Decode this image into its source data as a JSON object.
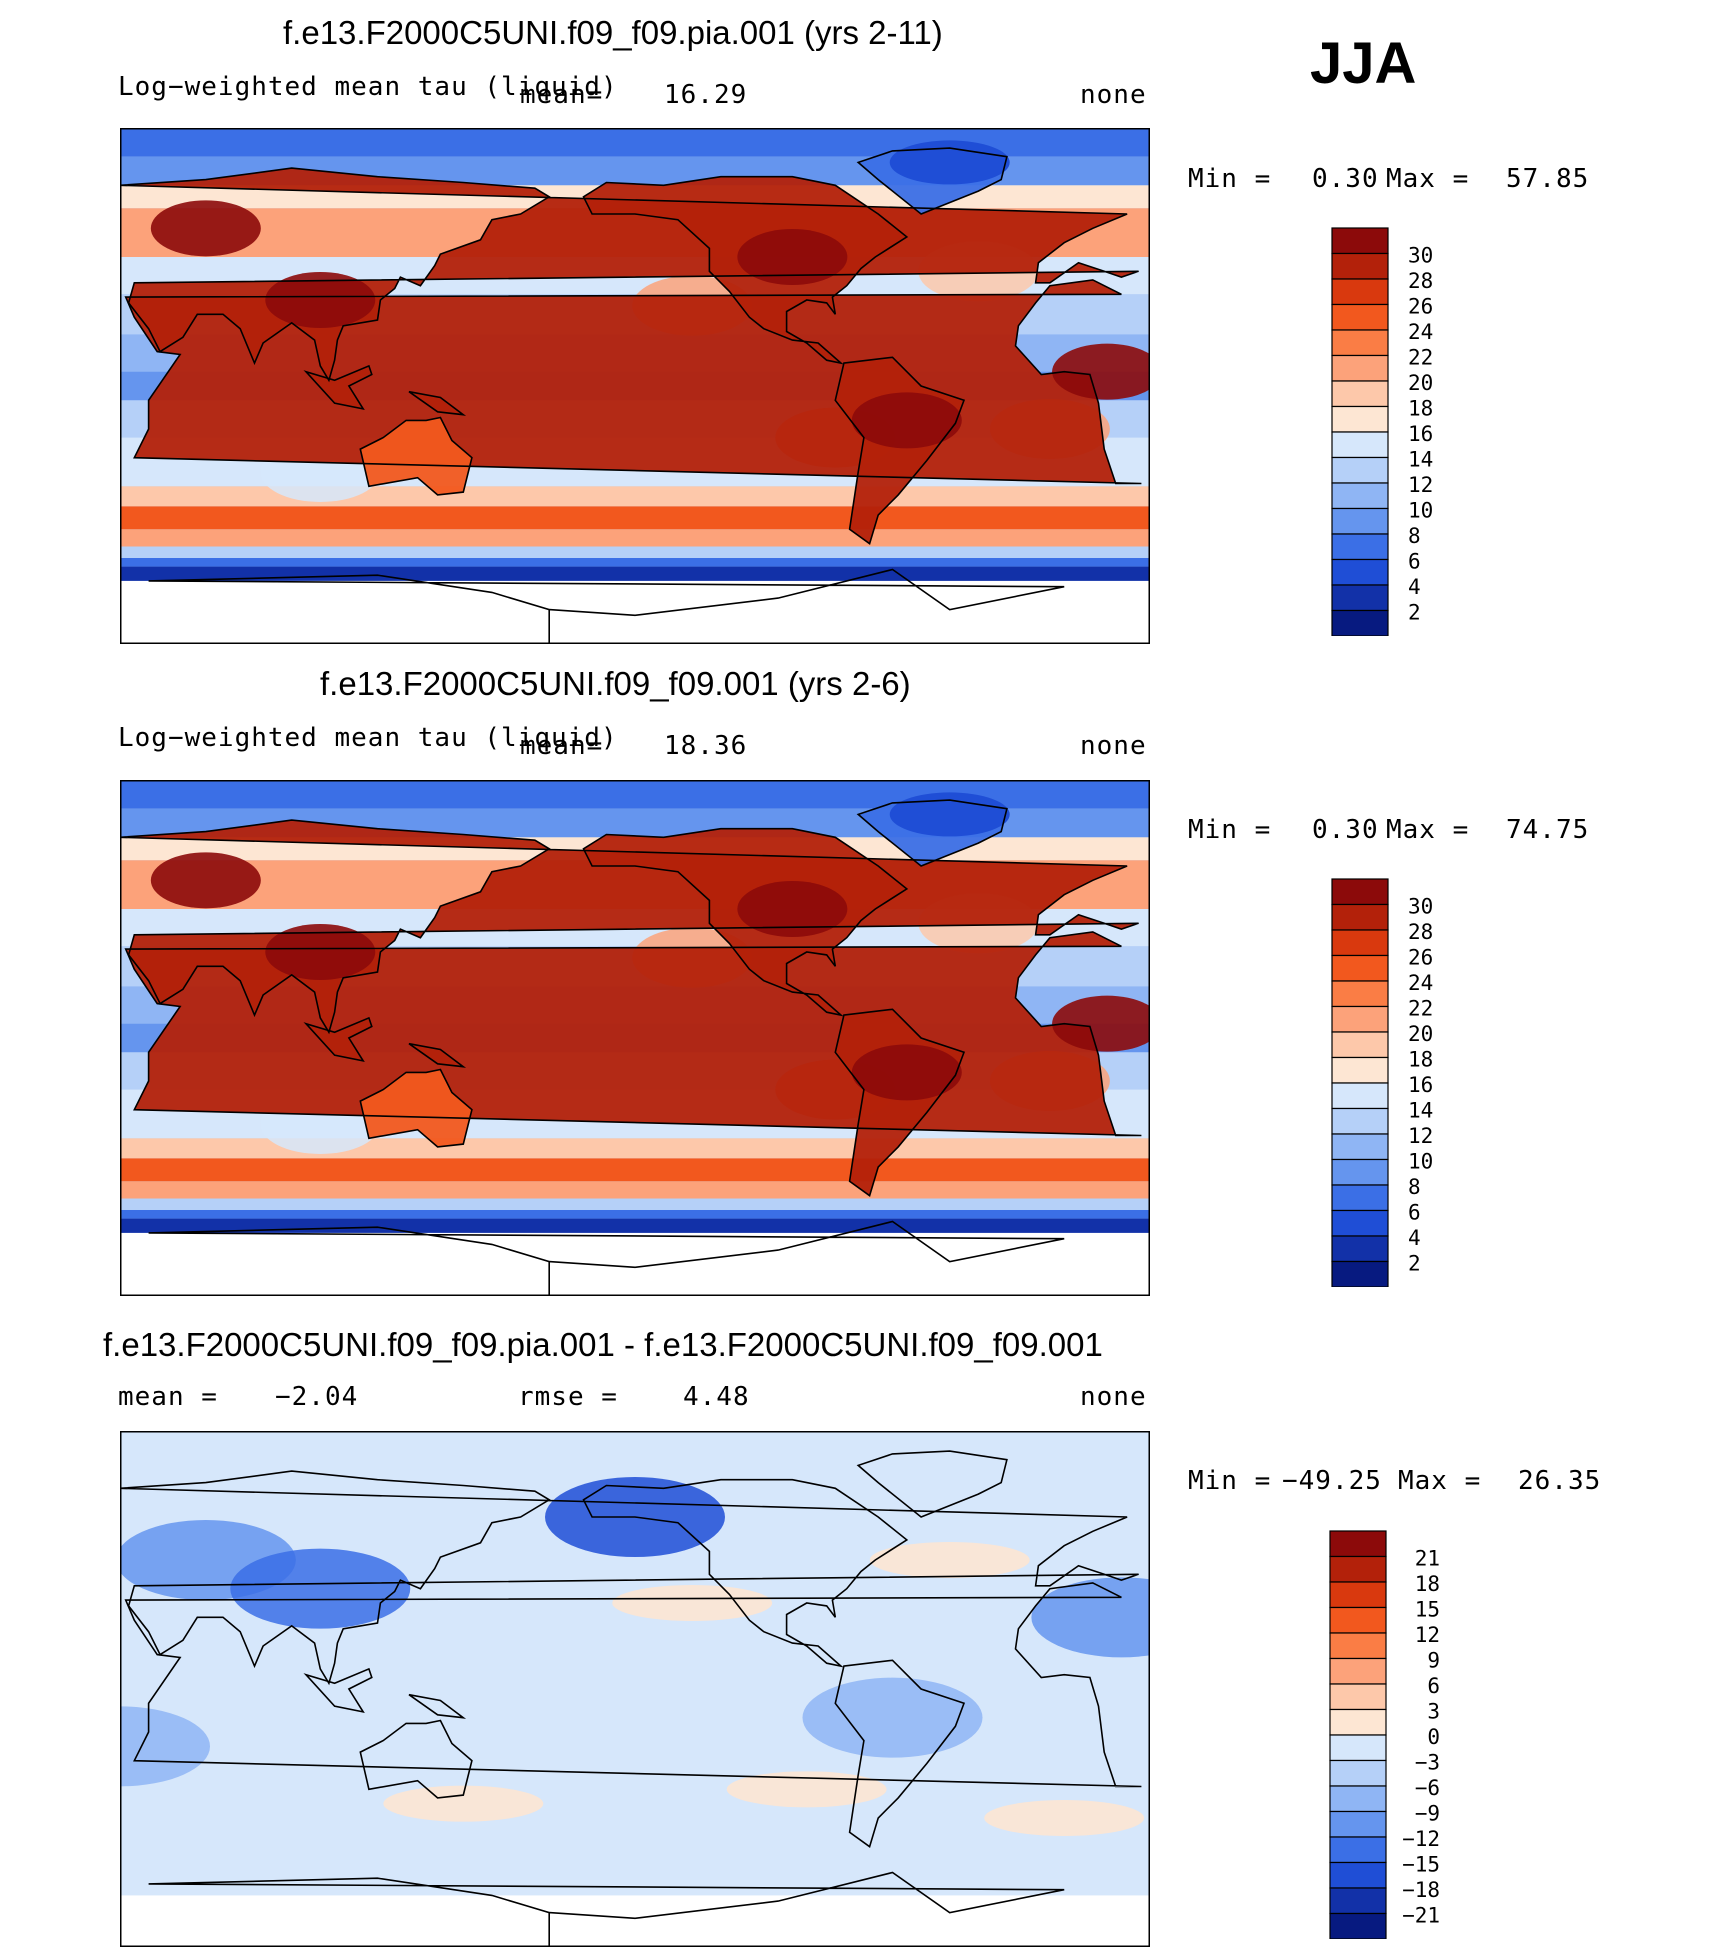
{
  "season": "JJA",
  "chart_data": [
    {
      "type": "heatmap",
      "title": "f.e13.F2000C5UNI.f09_f09.pia.001 (yrs 2-11)",
      "variable": "Log−weighted mean tau (liquid)",
      "mean_label": "mean=",
      "mean": "16.29",
      "units": "none",
      "min_label": "Min =",
      "min": "0.30",
      "max_label": "Max =",
      "max": "57.85",
      "levels": [
        "30",
        "28",
        "26",
        "24",
        "22",
        "20",
        "18",
        "16",
        "14",
        "12",
        "10",
        "8",
        "6",
        "4",
        "2"
      ],
      "colors": [
        "#8c0a0a",
        "#b3210a",
        "#d9390e",
        "#f2581e",
        "#fa7d45",
        "#fca27a",
        "#fdc8aa",
        "#fde6d3",
        "#d6e7fb",
        "#b5d0f8",
        "#8fb5f4",
        "#6595ee",
        "#3b6fe6",
        "#1f4ed6",
        "#1231a8",
        "#071a80"
      ]
    },
    {
      "type": "heatmap",
      "title": "f.e13.F2000C5UNI.f09_f09.001 (yrs 2-6)",
      "variable": "Log−weighted mean tau (liquid)",
      "mean_label": "mean=",
      "mean": "18.36",
      "units": "none",
      "min_label": "Min =",
      "min": "0.30",
      "max_label": "Max =",
      "max": "74.75",
      "levels": [
        "30",
        "28",
        "26",
        "24",
        "22",
        "20",
        "18",
        "16",
        "14",
        "12",
        "10",
        "8",
        "6",
        "4",
        "2"
      ],
      "colors": [
        "#8c0a0a",
        "#b3210a",
        "#d9390e",
        "#f2581e",
        "#fa7d45",
        "#fca27a",
        "#fdc8aa",
        "#fde6d3",
        "#d6e7fb",
        "#b5d0f8",
        "#8fb5f4",
        "#6595ee",
        "#3b6fe6",
        "#1f4ed6",
        "#1231a8",
        "#071a80"
      ]
    },
    {
      "type": "heatmap",
      "title": "f.e13.F2000C5UNI.f09_f09.pia.001 - f.e13.F2000C5UNI.f09_f09.001",
      "mean_label": "mean =",
      "mean": "−2.04",
      "rmse_label": "rmse =",
      "rmse": "4.48",
      "units": "none",
      "min_label": "Min =",
      "min": "−49.25",
      "max_label": "Max =",
      "max": "26.35",
      "levels": [
        "21",
        "18",
        "15",
        "12",
        "9",
        "6",
        "3",
        "0",
        "−3",
        "−6",
        "−9",
        "−12",
        "−15",
        "−18",
        "−21"
      ],
      "colors": [
        "#8c0a0a",
        "#b3210a",
        "#d9390e",
        "#f2581e",
        "#fa7d45",
        "#fca27a",
        "#fdc8aa",
        "#fde6d3",
        "#d6e7fb",
        "#b5d0f8",
        "#8fb5f4",
        "#6595ee",
        "#3b6fe6",
        "#1f4ed6",
        "#1231a8",
        "#071a80"
      ]
    }
  ]
}
